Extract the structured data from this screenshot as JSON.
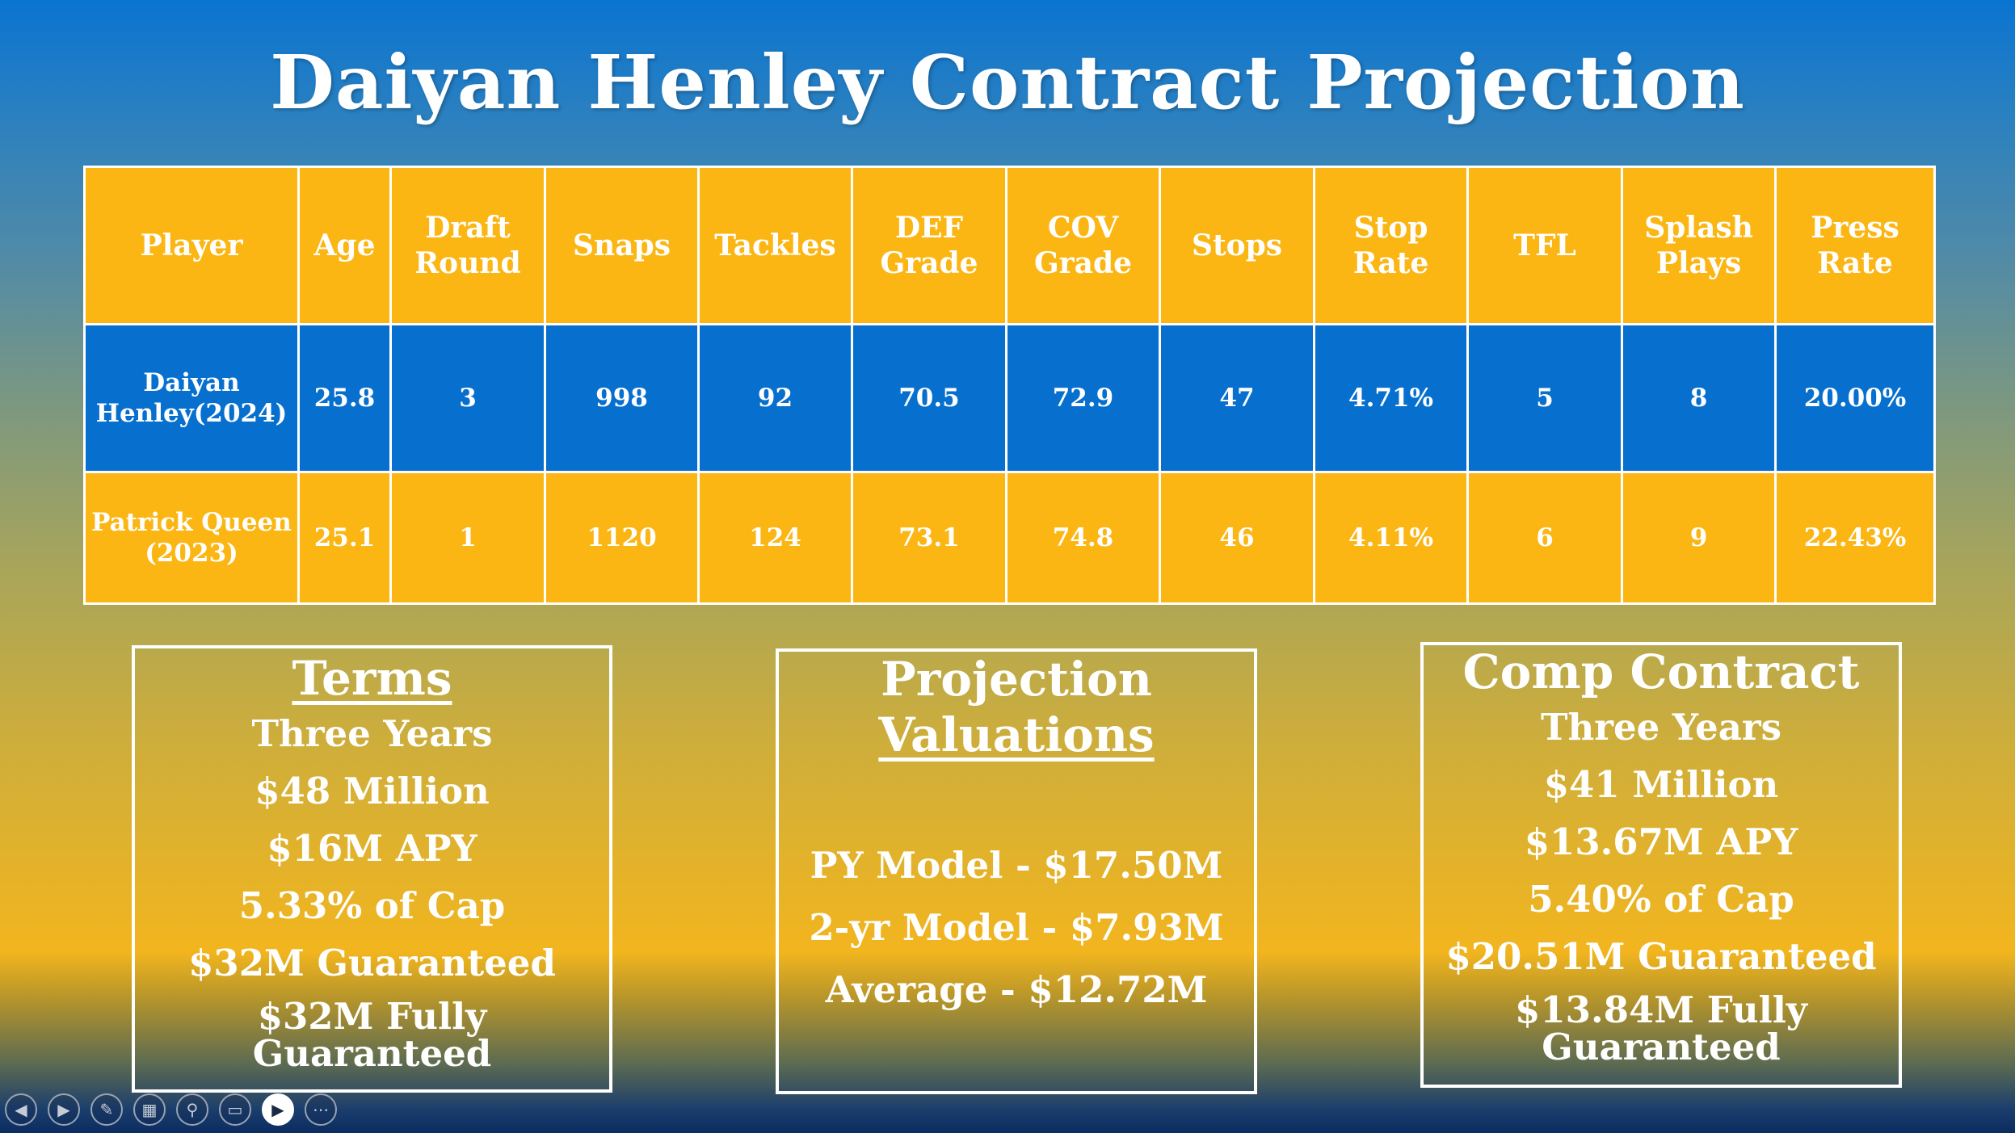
{
  "slide": {
    "title": "Daiyan Henley Contract Projection"
  },
  "table": {
    "headers": [
      "Player",
      "Age",
      "Draft Round",
      "Snaps",
      "Tackles",
      "DEF Grade",
      "COV Grade",
      "Stops",
      "Stop Rate",
      "TFL",
      "Splash Plays",
      "Press Rate"
    ],
    "rows": [
      [
        "Daiyan Henley(2024)",
        "25.8",
        "3",
        "998",
        "92",
        "70.5",
        "72.9",
        "47",
        "4.71%",
        "5",
        "8",
        "20.00%"
      ],
      [
        "Patrick Queen (2023)",
        "25.1",
        "1",
        "1120",
        "124",
        "73.1",
        "74.8",
        "46",
        "4.11%",
        "6",
        "9",
        "22.43%"
      ]
    ],
    "colors": {
      "header_bg": "#fbb614",
      "row1_bg": "#0770cf",
      "row2_bg": "#fbb614",
      "border": "#ffffff"
    }
  },
  "terms": {
    "heading": "Terms",
    "lines": [
      "Three Years",
      "$48 Million",
      "$16M APY",
      "5.33% of Cap",
      "$32M Guaranteed",
      "$32M Fully Guaranteed"
    ]
  },
  "projection": {
    "heading_line1": "Projection",
    "heading_line2": "Valuations",
    "lines": [
      "PY Model - $17.50M",
      "2-yr Model - $7.93M",
      "Average - $12.72M"
    ]
  },
  "comp": {
    "heading": "Comp Contract",
    "lines": [
      "Three Years",
      "$41 Million",
      "$13.67M APY",
      "5.40% of Cap",
      "$20.51M Guaranteed",
      "$13.84M Fully Guaranteed"
    ]
  },
  "toolbar": {
    "icons": [
      "previous-slide-icon",
      "next-slide-icon",
      "pen-icon",
      "slides-grid-icon",
      "zoom-icon",
      "subtitles-icon",
      "camera-icon",
      "more-options-icon"
    ],
    "glyphs": [
      "◀",
      "▶",
      "✎",
      "▦",
      "⚲",
      "▭",
      "▶",
      "⋯"
    ]
  }
}
